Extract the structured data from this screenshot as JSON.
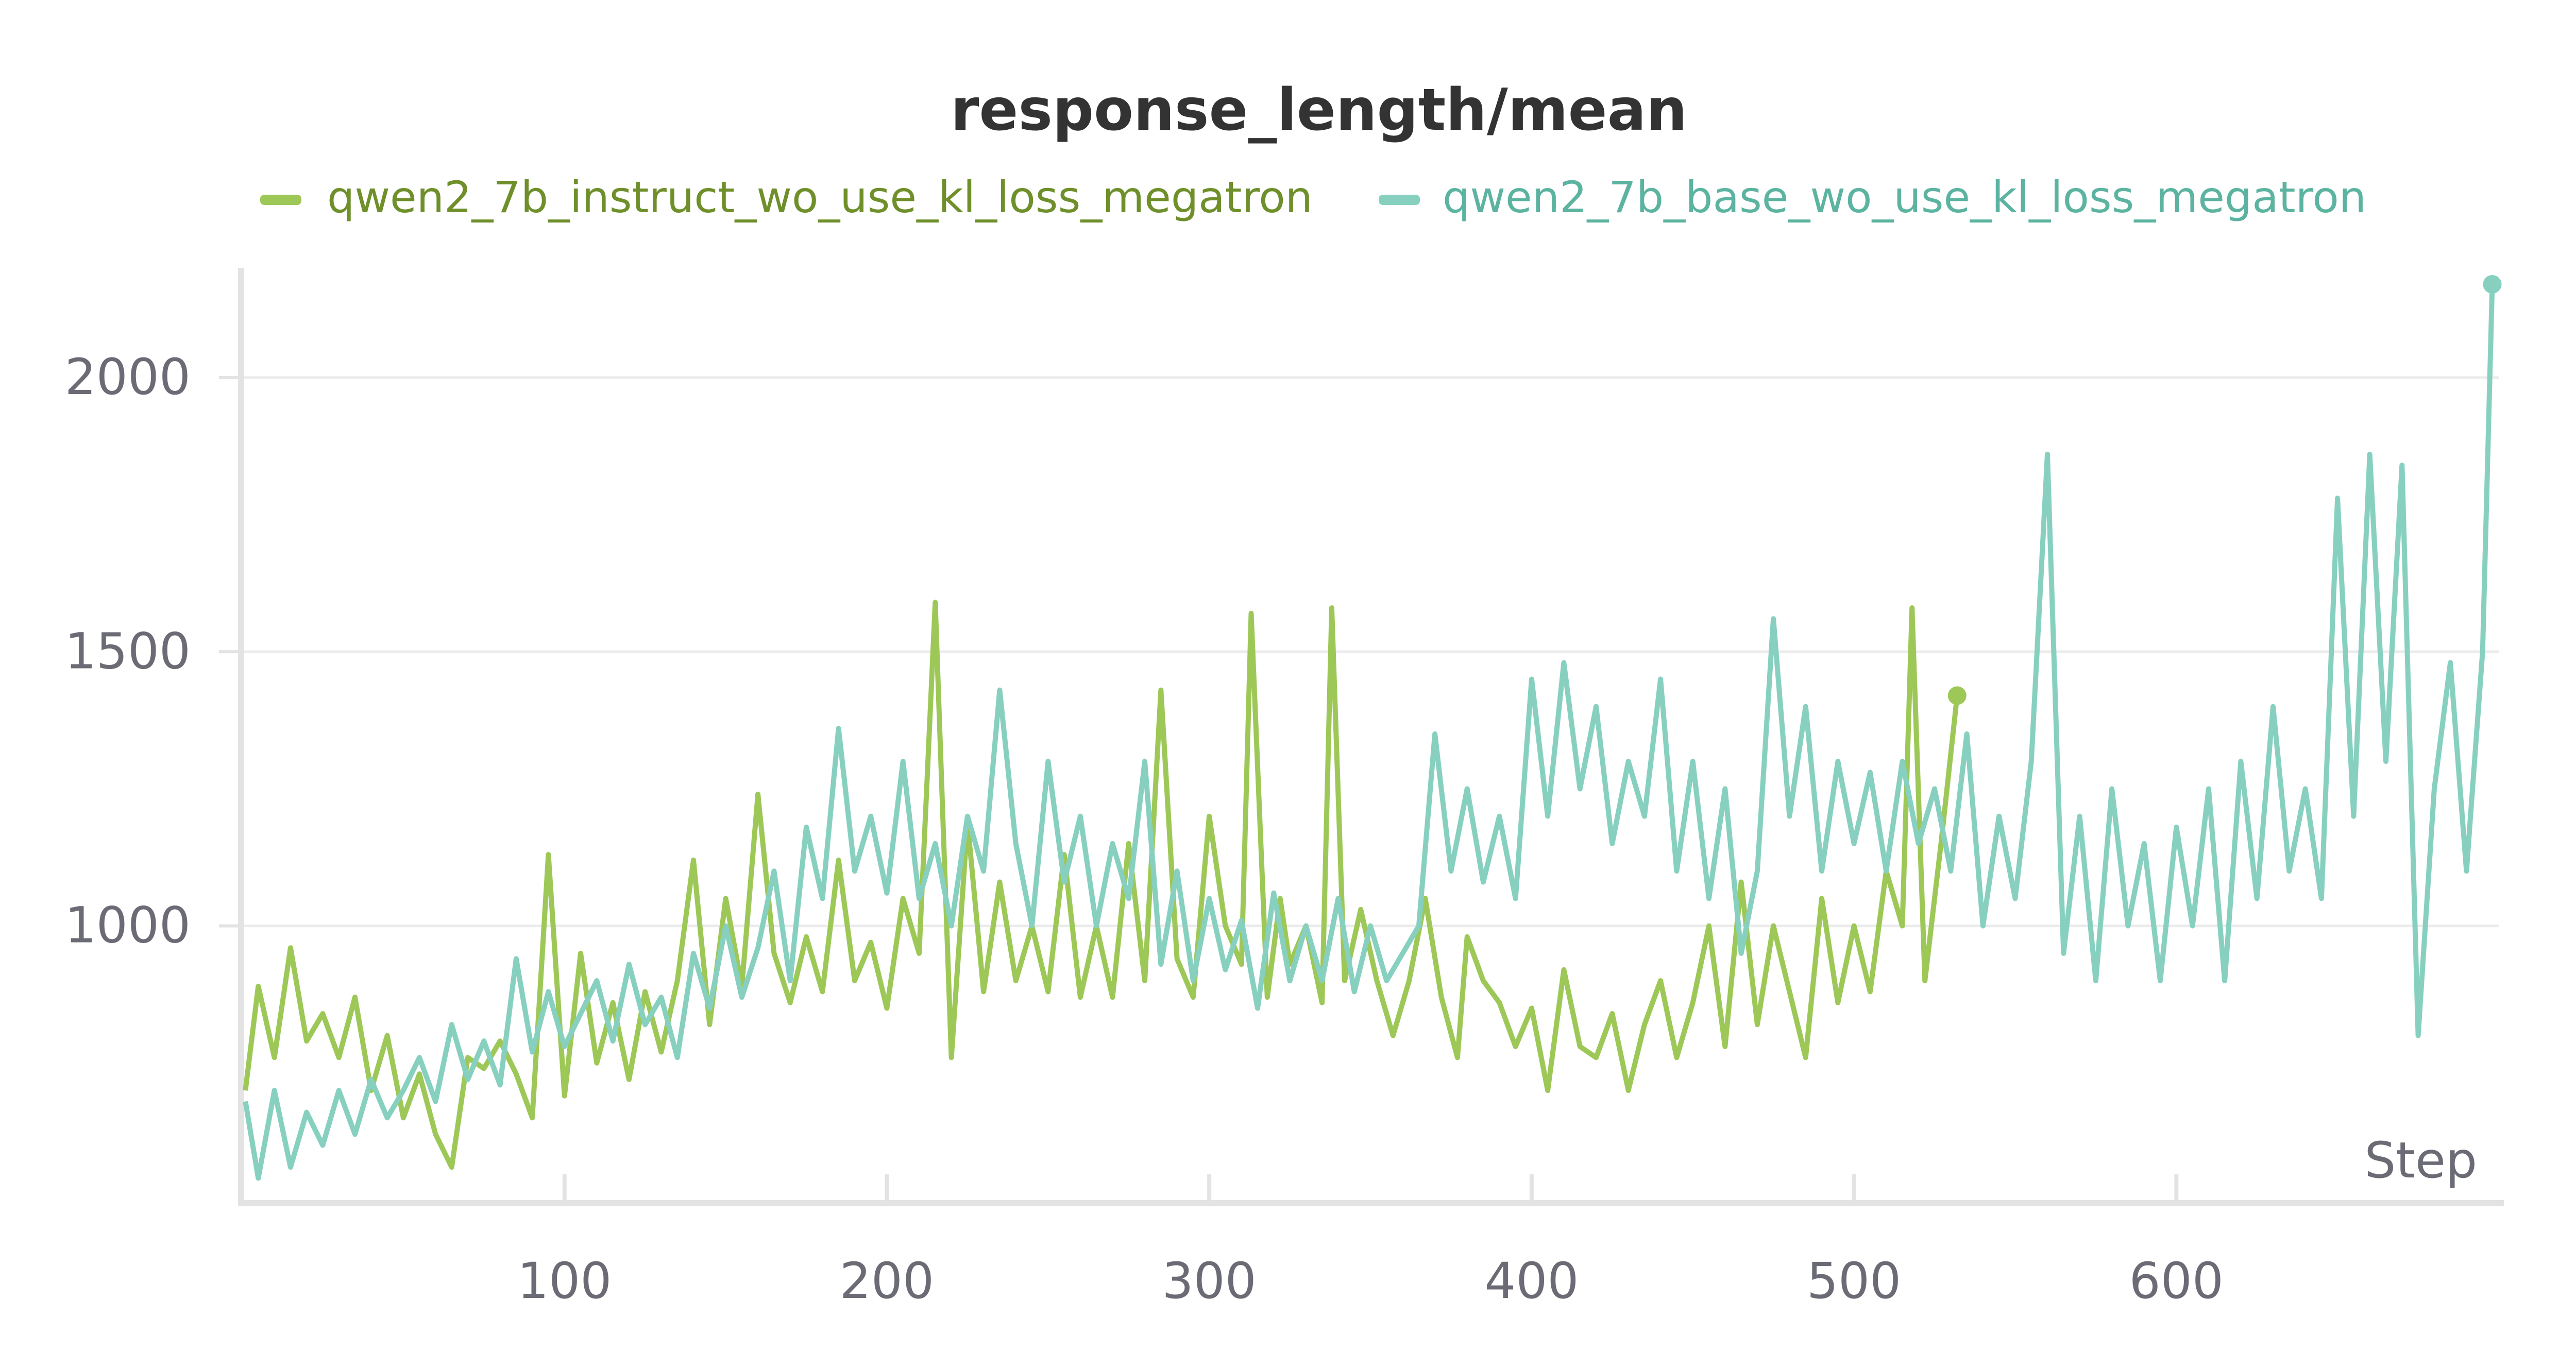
{
  "chart_data": {
    "type": "line",
    "title": "response_length/mean",
    "xlabel": "Step",
    "ylabel": "",
    "xlim": [
      0,
      700
    ],
    "ylim": [
      500,
      2200
    ],
    "x_ticks": [
      100,
      200,
      300,
      400,
      500,
      600
    ],
    "y_ticks": [
      1000,
      1500,
      2000
    ],
    "grid": "horizontal",
    "legend_position": "top",
    "series": [
      {
        "name": "qwen2_7b_instruct_wo_use_kl_loss_megatron",
        "color": "#9dc857",
        "points": [
          [
            1,
            700
          ],
          [
            5,
            890
          ],
          [
            10,
            760
          ],
          [
            15,
            960
          ],
          [
            20,
            790
          ],
          [
            25,
            840
          ],
          [
            30,
            760
          ],
          [
            35,
            870
          ],
          [
            40,
            700
          ],
          [
            45,
            800
          ],
          [
            50,
            650
          ],
          [
            55,
            730
          ],
          [
            60,
            620
          ],
          [
            65,
            560
          ],
          [
            70,
            760
          ],
          [
            75,
            740
          ],
          [
            80,
            790
          ],
          [
            85,
            730
          ],
          [
            90,
            650
          ],
          [
            95,
            1130
          ],
          [
            100,
            690
          ],
          [
            105,
            950
          ],
          [
            110,
            750
          ],
          [
            115,
            860
          ],
          [
            120,
            720
          ],
          [
            125,
            880
          ],
          [
            130,
            770
          ],
          [
            135,
            900
          ],
          [
            140,
            1120
          ],
          [
            145,
            820
          ],
          [
            150,
            1050
          ],
          [
            155,
            890
          ],
          [
            160,
            1240
          ],
          [
            165,
            950
          ],
          [
            170,
            860
          ],
          [
            175,
            980
          ],
          [
            180,
            880
          ],
          [
            185,
            1120
          ],
          [
            190,
            900
          ],
          [
            195,
            970
          ],
          [
            200,
            850
          ],
          [
            205,
            1050
          ],
          [
            210,
            950
          ],
          [
            215,
            1590
          ],
          [
            220,
            760
          ],
          [
            225,
            1190
          ],
          [
            230,
            880
          ],
          [
            235,
            1080
          ],
          [
            240,
            900
          ],
          [
            245,
            1000
          ],
          [
            250,
            880
          ],
          [
            255,
            1130
          ],
          [
            260,
            870
          ],
          [
            265,
            1000
          ],
          [
            270,
            870
          ],
          [
            275,
            1150
          ],
          [
            280,
            900
          ],
          [
            285,
            1430
          ],
          [
            290,
            940
          ],
          [
            295,
            870
          ],
          [
            300,
            1200
          ],
          [
            305,
            1000
          ],
          [
            310,
            930
          ],
          [
            313,
            1570
          ],
          [
            318,
            870
          ],
          [
            322,
            1050
          ],
          [
            325,
            930
          ],
          [
            330,
            1000
          ],
          [
            335,
            860
          ],
          [
            338,
            1580
          ],
          [
            342,
            900
          ],
          [
            347,
            1030
          ],
          [
            352,
            900
          ],
          [
            357,
            800
          ],
          [
            362,
            900
          ],
          [
            367,
            1050
          ],
          [
            372,
            870
          ],
          [
            377,
            760
          ],
          [
            380,
            980
          ],
          [
            385,
            900
          ],
          [
            390,
            860
          ],
          [
            395,
            780
          ],
          [
            400,
            850
          ],
          [
            405,
            700
          ],
          [
            410,
            920
          ],
          [
            415,
            780
          ],
          [
            420,
            760
          ],
          [
            425,
            840
          ],
          [
            430,
            700
          ],
          [
            435,
            820
          ],
          [
            440,
            900
          ],
          [
            445,
            760
          ],
          [
            450,
            860
          ],
          [
            455,
            1000
          ],
          [
            460,
            780
          ],
          [
            465,
            1080
          ],
          [
            470,
            820
          ],
          [
            475,
            1000
          ],
          [
            480,
            880
          ],
          [
            485,
            760
          ],
          [
            490,
            1050
          ],
          [
            495,
            860
          ],
          [
            500,
            1000
          ],
          [
            505,
            880
          ],
          [
            510,
            1100
          ],
          [
            515,
            1000
          ],
          [
            518,
            1580
          ],
          [
            522,
            900
          ],
          [
            527,
            1150
          ],
          [
            532,
            1420
          ]
        ]
      },
      {
        "name": "qwen2_7b_base_wo_use_kl_loss_megatron",
        "color": "#87d0bf",
        "points": [
          [
            1,
            680
          ],
          [
            5,
            540
          ],
          [
            10,
            700
          ],
          [
            15,
            560
          ],
          [
            20,
            660
          ],
          [
            25,
            600
          ],
          [
            30,
            700
          ],
          [
            35,
            620
          ],
          [
            40,
            720
          ],
          [
            45,
            650
          ],
          [
            50,
            700
          ],
          [
            55,
            760
          ],
          [
            60,
            680
          ],
          [
            65,
            820
          ],
          [
            70,
            720
          ],
          [
            75,
            790
          ],
          [
            80,
            710
          ],
          [
            85,
            940
          ],
          [
            90,
            770
          ],
          [
            95,
            880
          ],
          [
            100,
            780
          ],
          [
            105,
            840
          ],
          [
            110,
            900
          ],
          [
            115,
            790
          ],
          [
            120,
            930
          ],
          [
            125,
            820
          ],
          [
            130,
            870
          ],
          [
            135,
            760
          ],
          [
            140,
            950
          ],
          [
            145,
            850
          ],
          [
            150,
            1000
          ],
          [
            155,
            870
          ],
          [
            160,
            960
          ],
          [
            165,
            1100
          ],
          [
            170,
            900
          ],
          [
            175,
            1180
          ],
          [
            180,
            1050
          ],
          [
            185,
            1360
          ],
          [
            190,
            1100
          ],
          [
            195,
            1200
          ],
          [
            200,
            1060
          ],
          [
            205,
            1300
          ],
          [
            210,
            1050
          ],
          [
            215,
            1150
          ],
          [
            220,
            1000
          ],
          [
            225,
            1200
          ],
          [
            230,
            1100
          ],
          [
            235,
            1430
          ],
          [
            240,
            1150
          ],
          [
            245,
            1000
          ],
          [
            250,
            1300
          ],
          [
            255,
            1080
          ],
          [
            260,
            1200
          ],
          [
            265,
            1000
          ],
          [
            270,
            1150
          ],
          [
            275,
            1050
          ],
          [
            280,
            1300
          ],
          [
            285,
            930
          ],
          [
            290,
            1100
          ],
          [
            295,
            900
          ],
          [
            300,
            1050
          ],
          [
            305,
            920
          ],
          [
            310,
            1010
          ],
          [
            315,
            850
          ],
          [
            320,
            1060
          ],
          [
            325,
            900
          ],
          [
            330,
            1000
          ],
          [
            335,
            900
          ],
          [
            340,
            1050
          ],
          [
            345,
            880
          ],
          [
            350,
            1000
          ],
          [
            355,
            900
          ],
          [
            360,
            950
          ],
          [
            365,
            1000
          ],
          [
            370,
            1350
          ],
          [
            375,
            1100
          ],
          [
            380,
            1250
          ],
          [
            385,
            1080
          ],
          [
            390,
            1200
          ],
          [
            395,
            1050
          ],
          [
            400,
            1450
          ],
          [
            405,
            1200
          ],
          [
            410,
            1480
          ],
          [
            415,
            1250
          ],
          [
            420,
            1400
          ],
          [
            425,
            1150
          ],
          [
            430,
            1300
          ],
          [
            435,
            1200
          ],
          [
            440,
            1450
          ],
          [
            445,
            1100
          ],
          [
            450,
            1300
          ],
          [
            455,
            1050
          ],
          [
            460,
            1250
          ],
          [
            465,
            950
          ],
          [
            470,
            1100
          ],
          [
            475,
            1560
          ],
          [
            480,
            1200
          ],
          [
            485,
            1400
          ],
          [
            490,
            1100
          ],
          [
            495,
            1300
          ],
          [
            500,
            1150
          ],
          [
            505,
            1280
          ],
          [
            510,
            1100
          ],
          [
            515,
            1300
          ],
          [
            520,
            1150
          ],
          [
            525,
            1250
          ],
          [
            530,
            1100
          ],
          [
            535,
            1350
          ],
          [
            540,
            1000
          ],
          [
            545,
            1200
          ],
          [
            550,
            1050
          ],
          [
            555,
            1300
          ],
          [
            560,
            1860
          ],
          [
            565,
            950
          ],
          [
            570,
            1200
          ],
          [
            575,
            900
          ],
          [
            580,
            1250
          ],
          [
            585,
            1000
          ],
          [
            590,
            1150
          ],
          [
            595,
            900
          ],
          [
            600,
            1180
          ],
          [
            605,
            1000
          ],
          [
            610,
            1250
          ],
          [
            615,
            900
          ],
          [
            620,
            1300
          ],
          [
            625,
            1050
          ],
          [
            630,
            1400
          ],
          [
            635,
            1100
          ],
          [
            640,
            1250
          ],
          [
            645,
            1050
          ],
          [
            650,
            1780
          ],
          [
            655,
            1200
          ],
          [
            660,
            1860
          ],
          [
            665,
            1300
          ],
          [
            670,
            1840
          ],
          [
            675,
            800
          ],
          [
            680,
            1250
          ],
          [
            685,
            1480
          ],
          [
            690,
            1100
          ],
          [
            695,
            1500
          ],
          [
            698,
            2170
          ]
        ]
      }
    ]
  }
}
